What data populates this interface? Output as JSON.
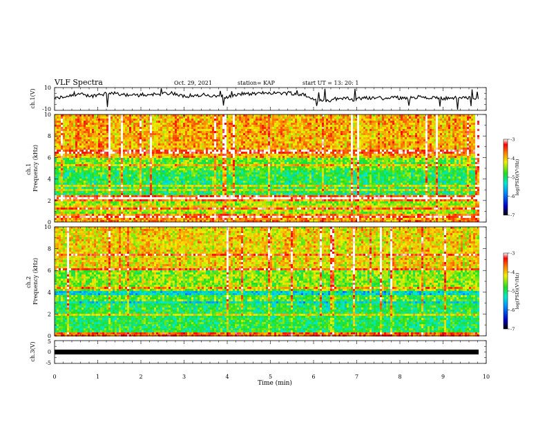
{
  "header": {
    "title": "VLF Spectra",
    "date": "Oct. 29, 2021",
    "station": "station= KAP",
    "start_ut": "start  UT =   13: 20: 1"
  },
  "chart_data": [
    {
      "type": "line",
      "name": "ch1-waveform",
      "ylabel": "ch.1(V)",
      "ylim": [
        -10,
        10
      ],
      "yticks": [
        "10",
        "-10"
      ],
      "xlim": [
        0,
        10
      ]
    },
    {
      "type": "heatmap",
      "name": "ch1-spectrogram",
      "ylabel": "ch.1\nFrequency (kHz)",
      "ylim": [
        0,
        10
      ],
      "yticks": [
        "0",
        "2",
        "4",
        "6",
        "8",
        "10"
      ],
      "xlim": [
        0,
        9.85
      ],
      "colorbar": {
        "label": "log(PSD)(V²/Hz)",
        "range": [
          -7,
          -3
        ],
        "ticks": [
          "-3",
          "-4",
          "-5",
          "-6",
          "-7"
        ]
      }
    },
    {
      "type": "heatmap",
      "name": "ch2-spectrogram",
      "ylabel": "ch.2\nFrequency (kHz)",
      "ylim": [
        0,
        10
      ],
      "yticks": [
        "0",
        "2",
        "4",
        "6",
        "8",
        "10"
      ],
      "xlim": [
        0,
        9.85
      ],
      "colorbar": {
        "label": "log(PSD)(V²/Hz)",
        "range": [
          -7,
          -3
        ],
        "ticks": [
          "-3",
          "-4",
          "-5",
          "-6",
          "-7"
        ]
      }
    },
    {
      "type": "line",
      "name": "ch3-waveform",
      "ylabel": "ch.3(V)",
      "ylim": [
        -5,
        5
      ],
      "yticks": [
        "5",
        "0",
        "-5"
      ],
      "xlim": [
        0,
        10
      ]
    }
  ],
  "xaxis": {
    "label": "Time  (min)",
    "ticks": [
      "0",
      "1",
      "2",
      "3",
      "4",
      "5",
      "6",
      "7",
      "8",
      "9",
      "10"
    ]
  }
}
